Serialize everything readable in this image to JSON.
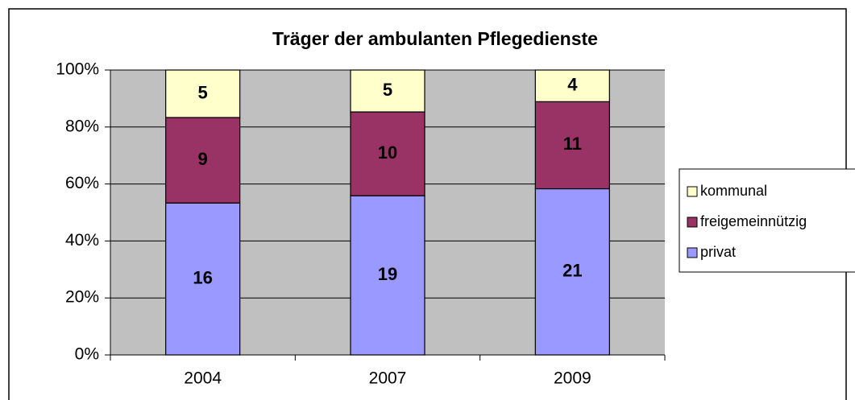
{
  "chart_data": {
    "type": "bar",
    "stacking": "percent",
    "title": "Träger der ambulanten Pflegedienste",
    "categories": [
      "2004",
      "2007",
      "2009"
    ],
    "series": [
      {
        "name": "privat",
        "color": "#9999ff",
        "values": [
          16,
          19,
          21
        ]
      },
      {
        "name": "freigemeinnützig",
        "color": "#993366",
        "values": [
          9,
          10,
          11
        ]
      },
      {
        "name": "kommunal",
        "color": "#ffffcc",
        "values": [
          5,
          5,
          4
        ]
      }
    ],
    "ylim": [
      0,
      100
    ],
    "yticks": [
      {
        "value": 0,
        "label": "0%"
      },
      {
        "value": 20,
        "label": "20%"
      },
      {
        "value": 40,
        "label": "40%"
      },
      {
        "value": 60,
        "label": "60%"
      },
      {
        "value": 80,
        "label": "80%"
      },
      {
        "value": 100,
        "label": "100%"
      }
    ],
    "grid": true,
    "plot_background": "#c0c0c0",
    "legend": "right"
  }
}
